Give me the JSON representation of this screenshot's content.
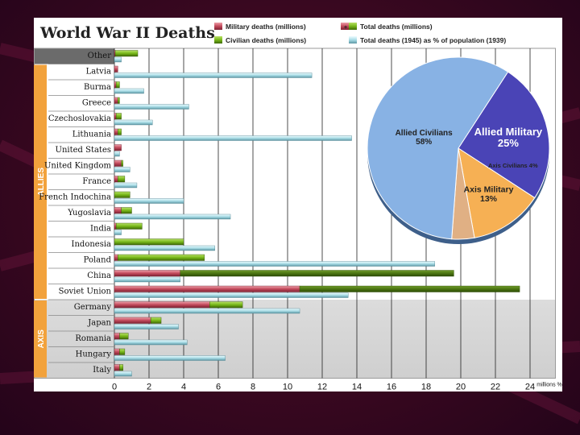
{
  "chart_data": [
    {
      "type": "bar",
      "title": "World War II Deaths",
      "xlabel": "millions %",
      "xlim": [
        0,
        24
      ],
      "xticks": [
        "0",
        "2",
        "4",
        "6",
        "8",
        "10",
        "12",
        "14",
        "16",
        "18",
        "20",
        "22",
        "24"
      ],
      "legend": {
        "military": "Military deaths (millions)",
        "plus": "+",
        "total": "Total deaths (millions)",
        "civilian": "Civilian deaths (millions)",
        "percent": "Total deaths (1945) as % of population (1939)"
      },
      "groups": [
        {
          "name": "",
          "start": 0,
          "end": 0
        },
        {
          "name": "ALLIES",
          "start": 1,
          "end": 15
        },
        {
          "name": "AXIS",
          "start": 16,
          "end": 20
        }
      ],
      "categories": [
        "Other",
        "Latvia",
        "Burma",
        "Greece",
        "Czechoslovakia",
        "Lithuania",
        "United States",
        "United Kingdom",
        "France",
        "French Indochina",
        "Yugoslavia",
        "India",
        "Indonesia",
        "Poland",
        "China",
        "Soviet Union",
        "Germany",
        "Japan",
        "Romania",
        "Hungary",
        "Italy"
      ],
      "series": [
        {
          "name": "Military deaths (millions)",
          "values": [
            0.05,
            0.2,
            0.1,
            0.2,
            0.1,
            0.2,
            0.4,
            0.4,
            0.2,
            0.0,
            0.4,
            0.1,
            0.0,
            0.2,
            3.8,
            10.7,
            5.5,
            2.1,
            0.3,
            0.3,
            0.3
          ]
        },
        {
          "name": "Civilian deaths (millions)",
          "values": [
            1.3,
            0.0,
            0.2,
            0.1,
            0.3,
            0.2,
            0.0,
            0.1,
            0.4,
            0.9,
            0.6,
            1.5,
            4.0,
            5.0,
            15.8,
            12.7,
            1.9,
            0.6,
            0.5,
            0.3,
            0.2
          ]
        },
        {
          "name": "Total deaths (1945) as % of population (1939)",
          "values": [
            0.4,
            11.4,
            1.7,
            4.3,
            2.2,
            13.7,
            0.3,
            0.9,
            1.3,
            4.0,
            6.7,
            0.4,
            5.8,
            18.5,
            3.8,
            13.5,
            10.7,
            3.7,
            4.2,
            6.4,
            1.0
          ]
        }
      ]
    },
    {
      "type": "pie",
      "slices": [
        {
          "label": "Allied Military",
          "value": 25,
          "percent_label": "25%",
          "color": "#4a44b6"
        },
        {
          "label": "Axis Military",
          "value": 13,
          "percent_label": "13%",
          "color": "#f6b054"
        },
        {
          "label": "Axis Civilians",
          "value": 4,
          "percent_label": "Axis Civilians 4%",
          "color": "#e0b084"
        },
        {
          "label": "Allied Civilians",
          "value": 58,
          "percent_label": "58%",
          "color": "#88b2e4"
        }
      ]
    }
  ],
  "colors": {
    "military": "#c24a5c",
    "civilian": "#78b81a",
    "percent": "#a8dce6",
    "group_orange": "#f2a23c",
    "axis_shade": "#d9d9d9",
    "header_gray": "#6b6b6b"
  }
}
